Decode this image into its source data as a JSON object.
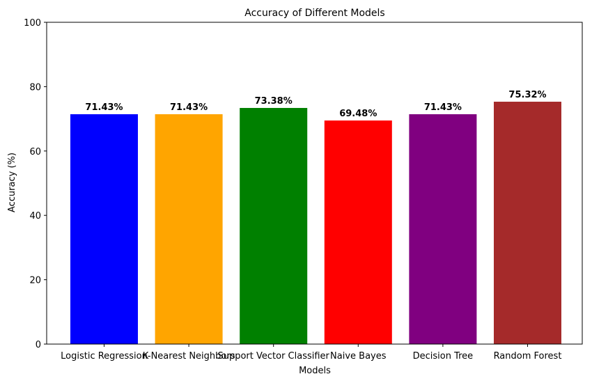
{
  "chart_data": {
    "type": "bar",
    "title": "Accuracy of Different Models",
    "xlabel": "Models",
    "ylabel": "Accuracy (%)",
    "ylim": [
      0,
      100
    ],
    "yticks": [
      "0",
      "20",
      "40",
      "60",
      "80",
      "100"
    ],
    "categories": [
      "Logistic Regression",
      "K-Nearest Neighbors",
      "Support Vector Classifier",
      "Naive Bayes",
      "Decision Tree",
      "Random Forest"
    ],
    "values": [
      71.43,
      71.43,
      73.38,
      69.48,
      71.43,
      75.32
    ],
    "value_labels": [
      "71.43%",
      "71.43%",
      "73.38%",
      "69.48%",
      "71.43%",
      "75.32%"
    ],
    "colors": [
      "#0000ff",
      "#ffa500",
      "#008000",
      "#ff0000",
      "#800080",
      "#a52a2a"
    ],
    "grid": false,
    "legend": "none"
  }
}
